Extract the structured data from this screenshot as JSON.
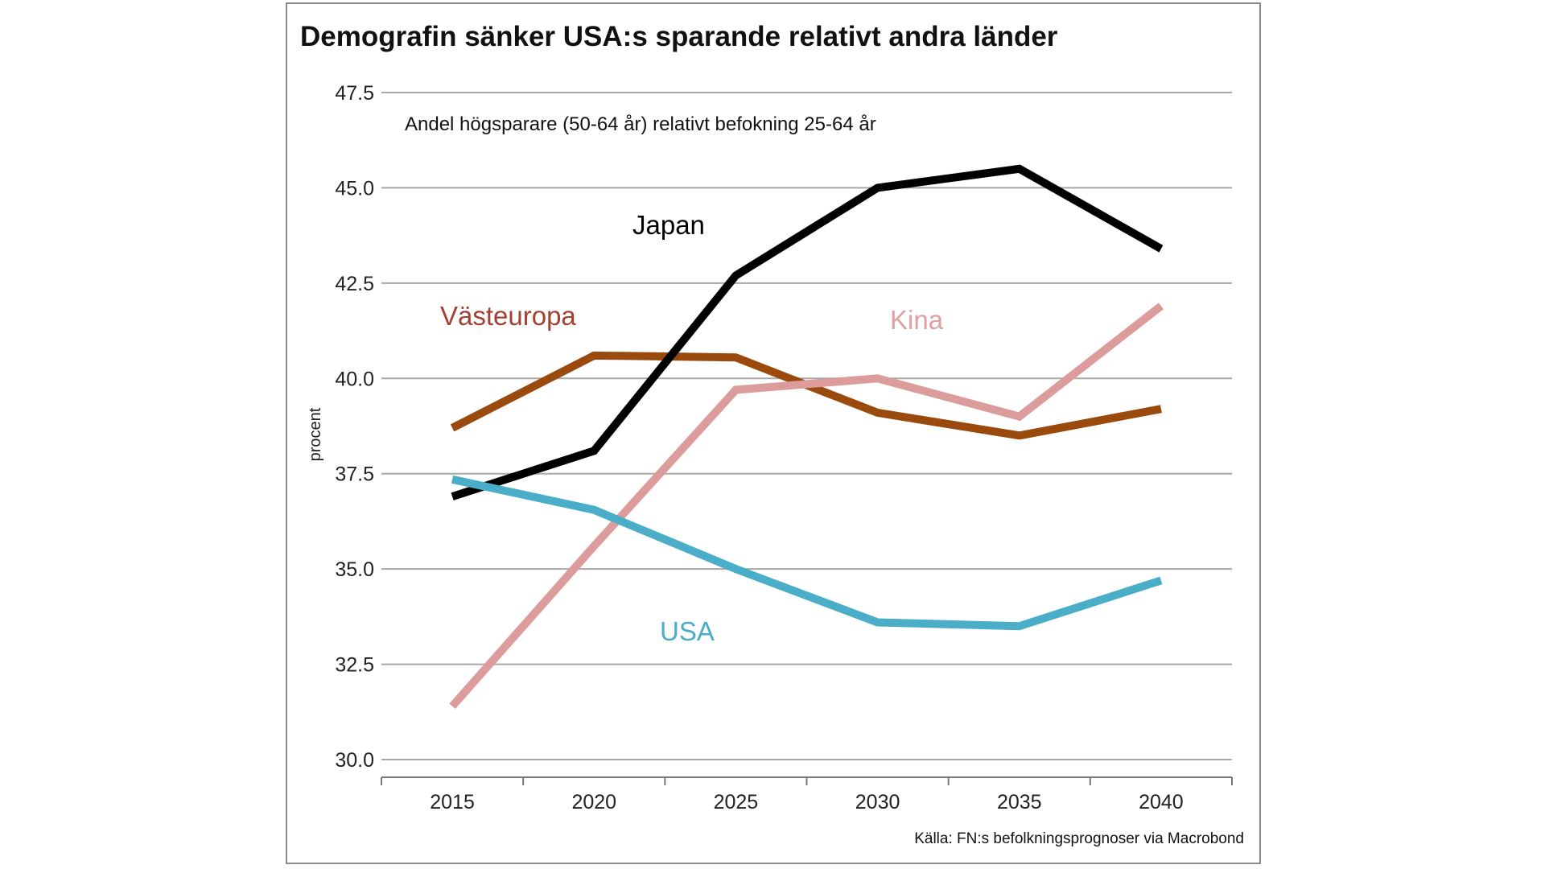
{
  "chart_data": {
    "type": "line",
    "title": "Demografin sänker USA:s sparande relativt andra länder",
    "subtitle": "Andel högsparare (50-64 år) relativt befokning 25-64 år",
    "ylabel": "procent",
    "xlabel": "",
    "source": "Källa: FN:s befolkningsprognoser via Macrobond",
    "categories": [
      "2015",
      "2020",
      "2025",
      "2030",
      "2035",
      "2040"
    ],
    "ylim": [
      30.0,
      47.5
    ],
    "yticks": [
      "30.0",
      "32.5",
      "35.0",
      "37.5",
      "40.0",
      "42.5",
      "45.0",
      "47.5"
    ],
    "grid": true,
    "legend": "inline labels",
    "series": [
      {
        "name": "Japan",
        "color": "#000000",
        "label_color": "#000000",
        "values": [
          36.9,
          38.1,
          42.7,
          45.0,
          45.5,
          43.4
        ]
      },
      {
        "name": "Västeuropa",
        "color": "#9b4a0e",
        "label_color": "#a3402f",
        "values": [
          38.7,
          40.6,
          40.55,
          39.1,
          38.5,
          39.2
        ]
      },
      {
        "name": "Kina",
        "color": "#dc9c9c",
        "label_color": "#e0a0a0",
        "values": [
          31.4,
          35.6,
          39.7,
          40.0,
          39.0,
          41.9
        ]
      },
      {
        "name": "USA",
        "color": "#4aaec8",
        "label_color": "#4aaec8",
        "values": [
          37.35,
          36.55,
          35.0,
          33.6,
          33.5,
          34.7
        ]
      }
    ]
  }
}
